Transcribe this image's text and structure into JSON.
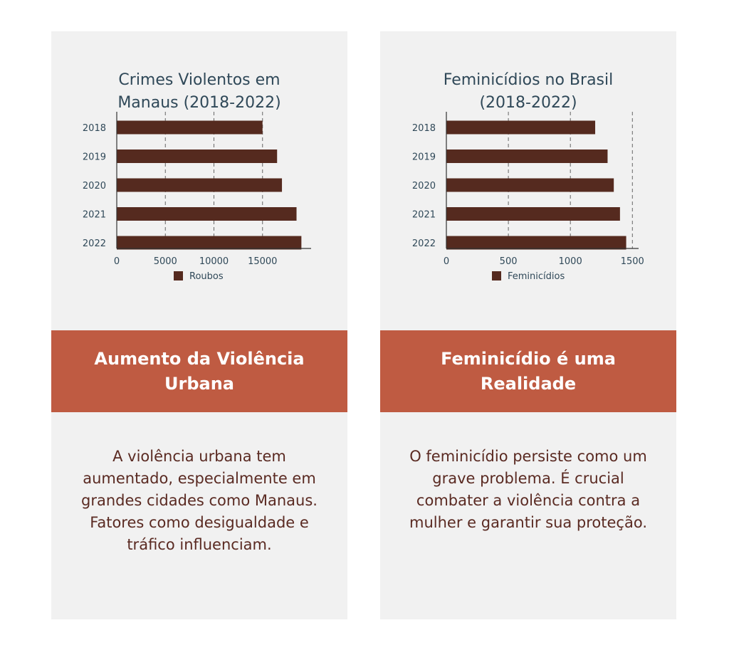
{
  "chart_data": [
    {
      "type": "bar",
      "orientation": "horizontal",
      "title": "Crimes Violentos em Manaus (2018-2022)",
      "title_lines": [
        "Crimes Violentos em",
        "Manaus (2018-2022)"
      ],
      "categories": [
        "2018",
        "2019",
        "2020",
        "2021",
        "2022"
      ],
      "series": [
        {
          "name": "Roubos",
          "values": [
            15000,
            16500,
            17000,
            18500,
            19000
          ]
        }
      ],
      "xlim": [
        0,
        20000
      ],
      "xticks": [
        0,
        5000,
        10000,
        15000
      ],
      "xtick_labels": [
        "0",
        "5000",
        "10000",
        "15000"
      ],
      "grid": "vertical dashed",
      "legend": "bottom",
      "bar_color": "#552a1f"
    },
    {
      "type": "bar",
      "orientation": "horizontal",
      "title": "Feminicídios no Brasil (2018-2022)",
      "title_lines": [
        "Feminicídios no Brasil",
        "(2018-2022)"
      ],
      "categories": [
        "2018",
        "2019",
        "2020",
        "2021",
        "2022"
      ],
      "series": [
        {
          "name": "Feminicídios",
          "values": [
            1200,
            1300,
            1350,
            1400,
            1450
          ]
        }
      ],
      "xlim": [
        0,
        1550
      ],
      "xticks": [
        0,
        500,
        1000,
        1500
      ],
      "xtick_labels": [
        "0",
        "500",
        "1000",
        "1500"
      ],
      "grid": "vertical dashed",
      "legend": "bottom",
      "bar_color": "#552a1f"
    }
  ],
  "cards": [
    {
      "banner_title": "Aumento da Violência Urbana",
      "text": "A violência urbana tem aumentado, especialmente em grandes cidades como Manaus. Fatores como desigualdade e tráfico influenciam."
    },
    {
      "banner_title": "Feminicídio é uma Realidade",
      "text": "O feminicídio persiste como um grave problema. É crucial combater a violência contra a mulher e garantir sua proteção."
    }
  ],
  "colors": {
    "background": "#ffffff",
    "card": "#f1f1f1",
    "banner": "#bf5b42",
    "bar": "#552a1f",
    "title": "#2f4858",
    "body_text": "#5a2a22"
  }
}
